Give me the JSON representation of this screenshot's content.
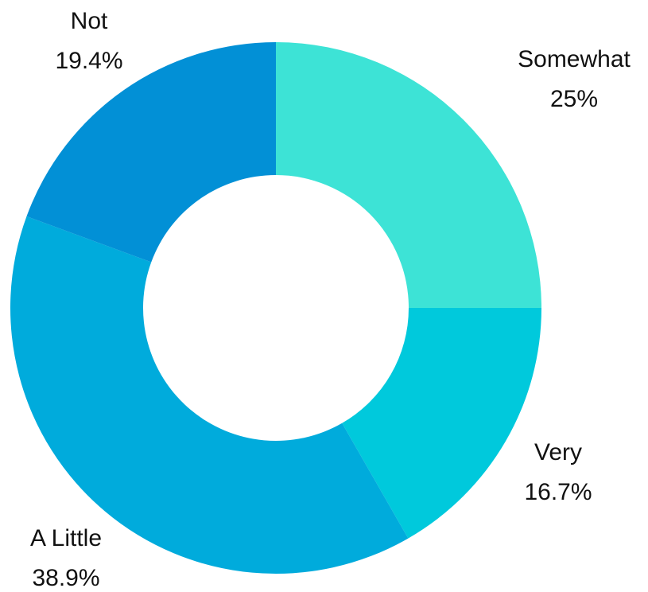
{
  "chart_data": {
    "type": "pie",
    "donut": true,
    "title": "",
    "legend": "none",
    "categories": [
      "Somewhat",
      "Very",
      "A Little",
      "Not"
    ],
    "values": [
      25,
      16.7,
      38.9,
      19.4
    ],
    "value_labels": [
      "25%",
      "16.7%",
      "38.9%",
      "19.4%"
    ],
    "colors": [
      "#3de3d6",
      "#00c9dc",
      "#00abdc",
      "#0290d6"
    ]
  }
}
